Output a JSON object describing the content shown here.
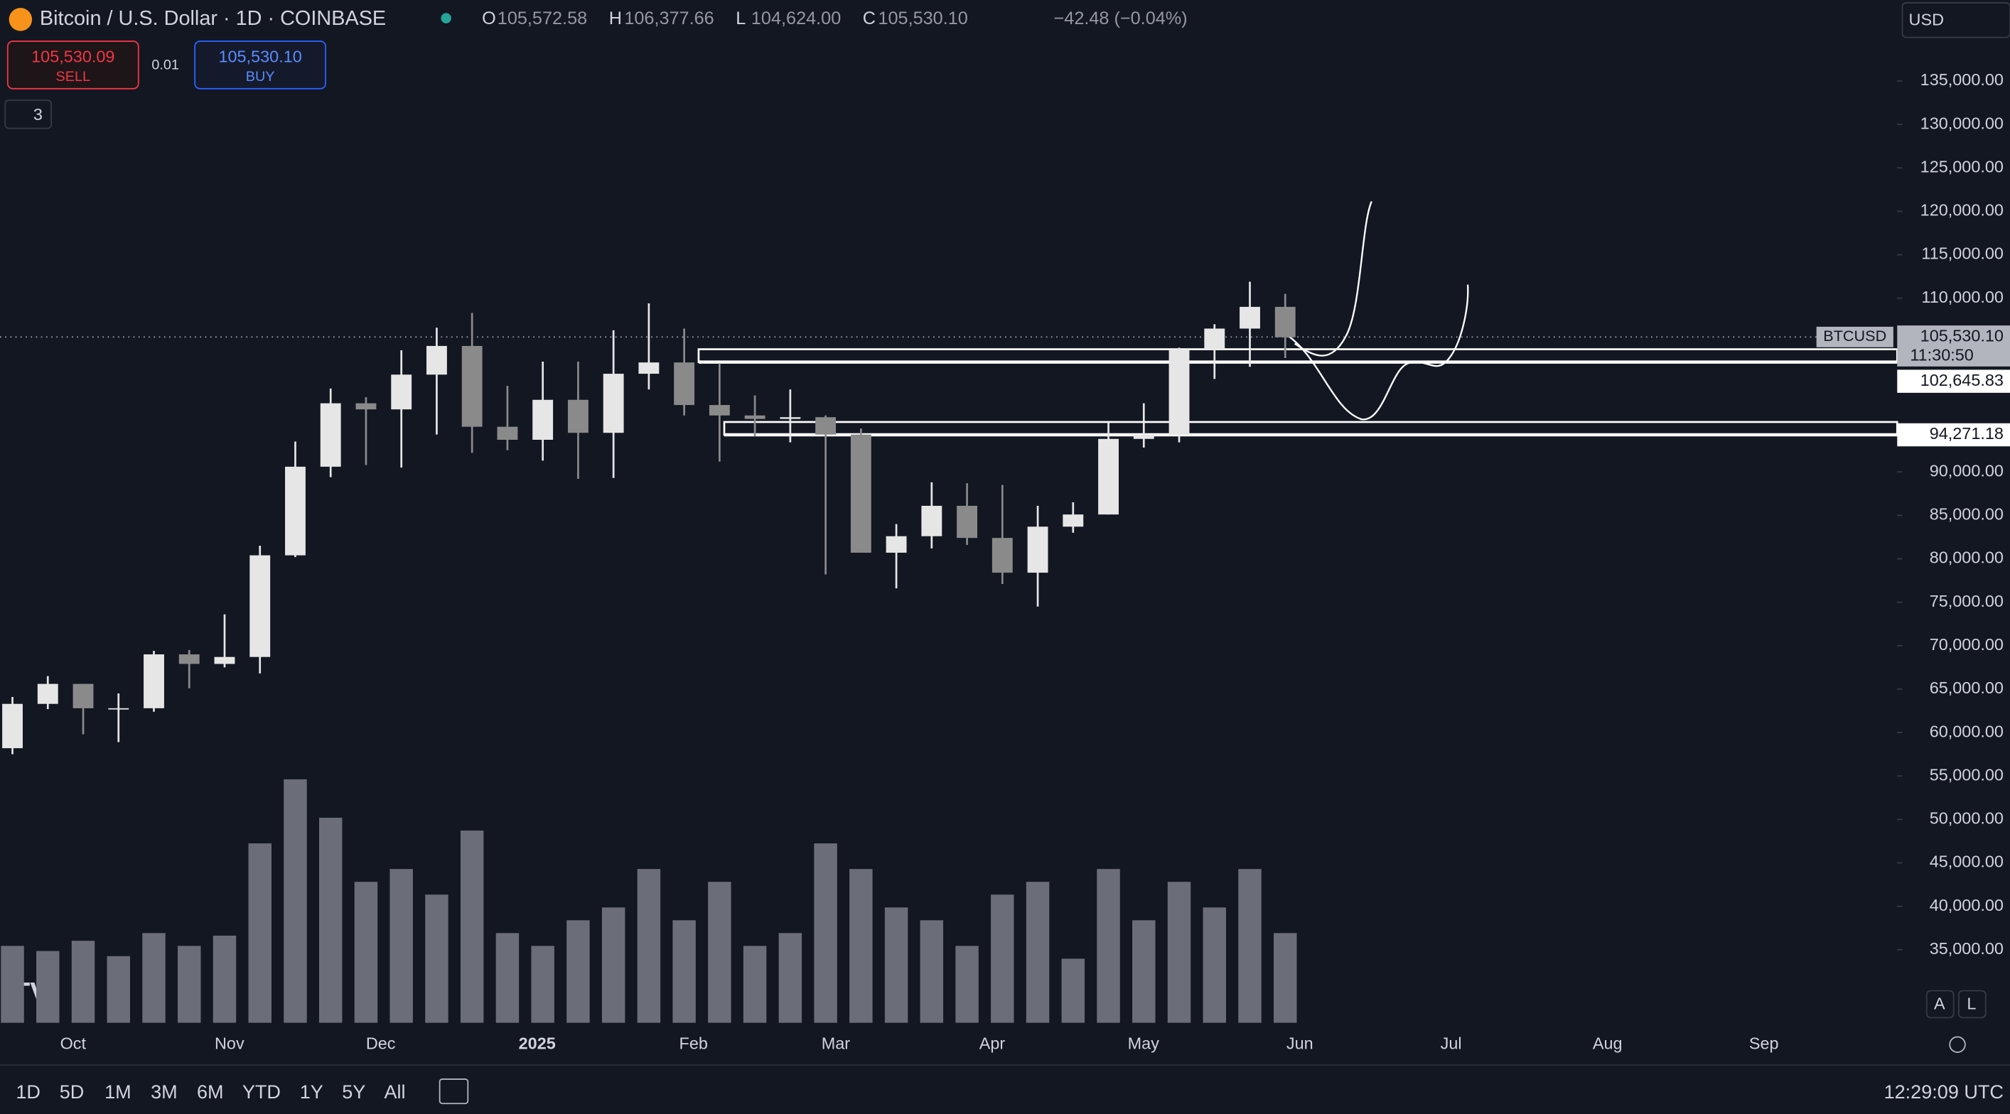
{
  "header": {
    "title": "Bitcoin / U.S. Dollar · 1D · COINBASE",
    "ohlc": [
      {
        "key": "O",
        "value": "105,572.58"
      },
      {
        "key": "H",
        "value": "106,377.66"
      },
      {
        "key": "L",
        "value": "104,624.00"
      },
      {
        "key": "C",
        "value": "105,530.10"
      }
    ],
    "change": "−42.48 (−0.04%)",
    "sell_price": "105,530.09",
    "sell": "SELL",
    "spread": "0.01",
    "buy_price": "105,530.10",
    "buy": "BUY",
    "indicators": "3",
    "currency": "USD"
  },
  "chart_data": {
    "type": "candlestick",
    "symbol": "BTCUSD",
    "last_price": {
      "value": 105530.1,
      "label": "105,530.10"
    },
    "countdown": "11:30:50",
    "levels": [
      {
        "value": 102645.83,
        "label": "102,645.83"
      },
      {
        "value": 94271.18,
        "label": "94,271.18"
      }
    ],
    "up_color": "#e6e6e6",
    "down_color": "#8a8a8a",
    "volume_color": "#6b6e78",
    "ylim": [
      30000,
      140000
    ],
    "yticks": [
      {
        "value": 35000,
        "label": "35,000.00"
      },
      {
        "value": 40000,
        "label": "40,000.00"
      },
      {
        "value": 45000,
        "label": "45,000.00"
      },
      {
        "value": 50000,
        "label": "50,000.00"
      },
      {
        "value": 55000,
        "label": "55,000.00"
      },
      {
        "value": 60000,
        "label": "60,000.00"
      },
      {
        "value": 65000,
        "label": "65,000.00"
      },
      {
        "value": 70000,
        "label": "70,000.00"
      },
      {
        "value": 75000,
        "label": "75,000.00"
      },
      {
        "value": 80000,
        "label": "80,000.00"
      },
      {
        "value": 85000,
        "label": "85,000.00"
      },
      {
        "value": 90000,
        "label": "90,000.00"
      },
      {
        "value": 110000,
        "label": "110,000.00"
      },
      {
        "value": 115000,
        "label": "115,000.00"
      },
      {
        "value": 120000,
        "label": "120,000.00"
      },
      {
        "value": 125000,
        "label": "125,000.00"
      },
      {
        "value": 130000,
        "label": "130,000.00"
      },
      {
        "value": 135000,
        "label": "135,000.00"
      }
    ],
    "x_labels": [
      "Oct",
      "Nov",
      "Dec",
      "2025",
      "Feb",
      "Mar",
      "Apr",
      "May",
      "Jun",
      "Jul",
      "Aug",
      "Sep"
    ],
    "open": [
      58200,
      63300,
      65600,
      62800,
      62800,
      69000,
      67900,
      68700,
      80400,
      90600,
      97900,
      97200,
      101200,
      104500,
      95200,
      93700,
      98300,
      94500,
      101300,
      102600,
      97700,
      96500,
      96100,
      96300,
      94300,
      80700,
      82600,
      86100,
      82400,
      78400,
      83700,
      85100,
      93800,
      94300,
      104100,
      106500,
      109000
    ],
    "high": [
      64100,
      66500,
      65600,
      64500,
      69400,
      69500,
      73600,
      81500,
      93500,
      99600,
      98600,
      104000,
      106600,
      108300,
      99900,
      102700,
      102700,
      106300,
      109400,
      106500,
      102500,
      98800,
      99500,
      96500,
      95000,
      84000,
      88800,
      88700,
      88500,
      86100,
      86500,
      95700,
      97900,
      104300,
      107000,
      111900,
      110500
    ],
    "low": [
      57500,
      62700,
      59800,
      58900,
      62400,
      65100,
      67500,
      66800,
      80200,
      89400,
      90800,
      90500,
      94300,
      92200,
      92500,
      91300,
      89200,
      89300,
      99500,
      96500,
      91200,
      94100,
      93400,
      78200,
      81500,
      76600,
      81200,
      81600,
      77100,
      74500,
      83000,
      85100,
      92800,
      93400,
      100700,
      102100,
      103100
    ],
    "close": [
      63300,
      65600,
      62800,
      62800,
      69000,
      67900,
      68700,
      80400,
      90600,
      97900,
      97200,
      101200,
      104500,
      95200,
      93700,
      98300,
      94500,
      101300,
      102600,
      97700,
      96500,
      96100,
      96300,
      94300,
      80700,
      82600,
      86100,
      82400,
      78400,
      83700,
      85100,
      93800,
      94300,
      104100,
      106500,
      109000,
      105500
    ],
    "volume": [
      30,
      28,
      32,
      26,
      35,
      30,
      34,
      70,
      95,
      80,
      55,
      60,
      50,
      75,
      35,
      30,
      40,
      45,
      60,
      40,
      55,
      30,
      35,
      70,
      60,
      45,
      40,
      30,
      50,
      55,
      25,
      60,
      40,
      55,
      45,
      60,
      35
    ]
  },
  "footer": {
    "ranges": [
      "1D",
      "5D",
      "1M",
      "3M",
      "6M",
      "YTD",
      "1Y",
      "5Y",
      "All"
    ],
    "clock": "12:29:09 UTC",
    "scale_buttons": [
      "A",
      "L"
    ]
  }
}
